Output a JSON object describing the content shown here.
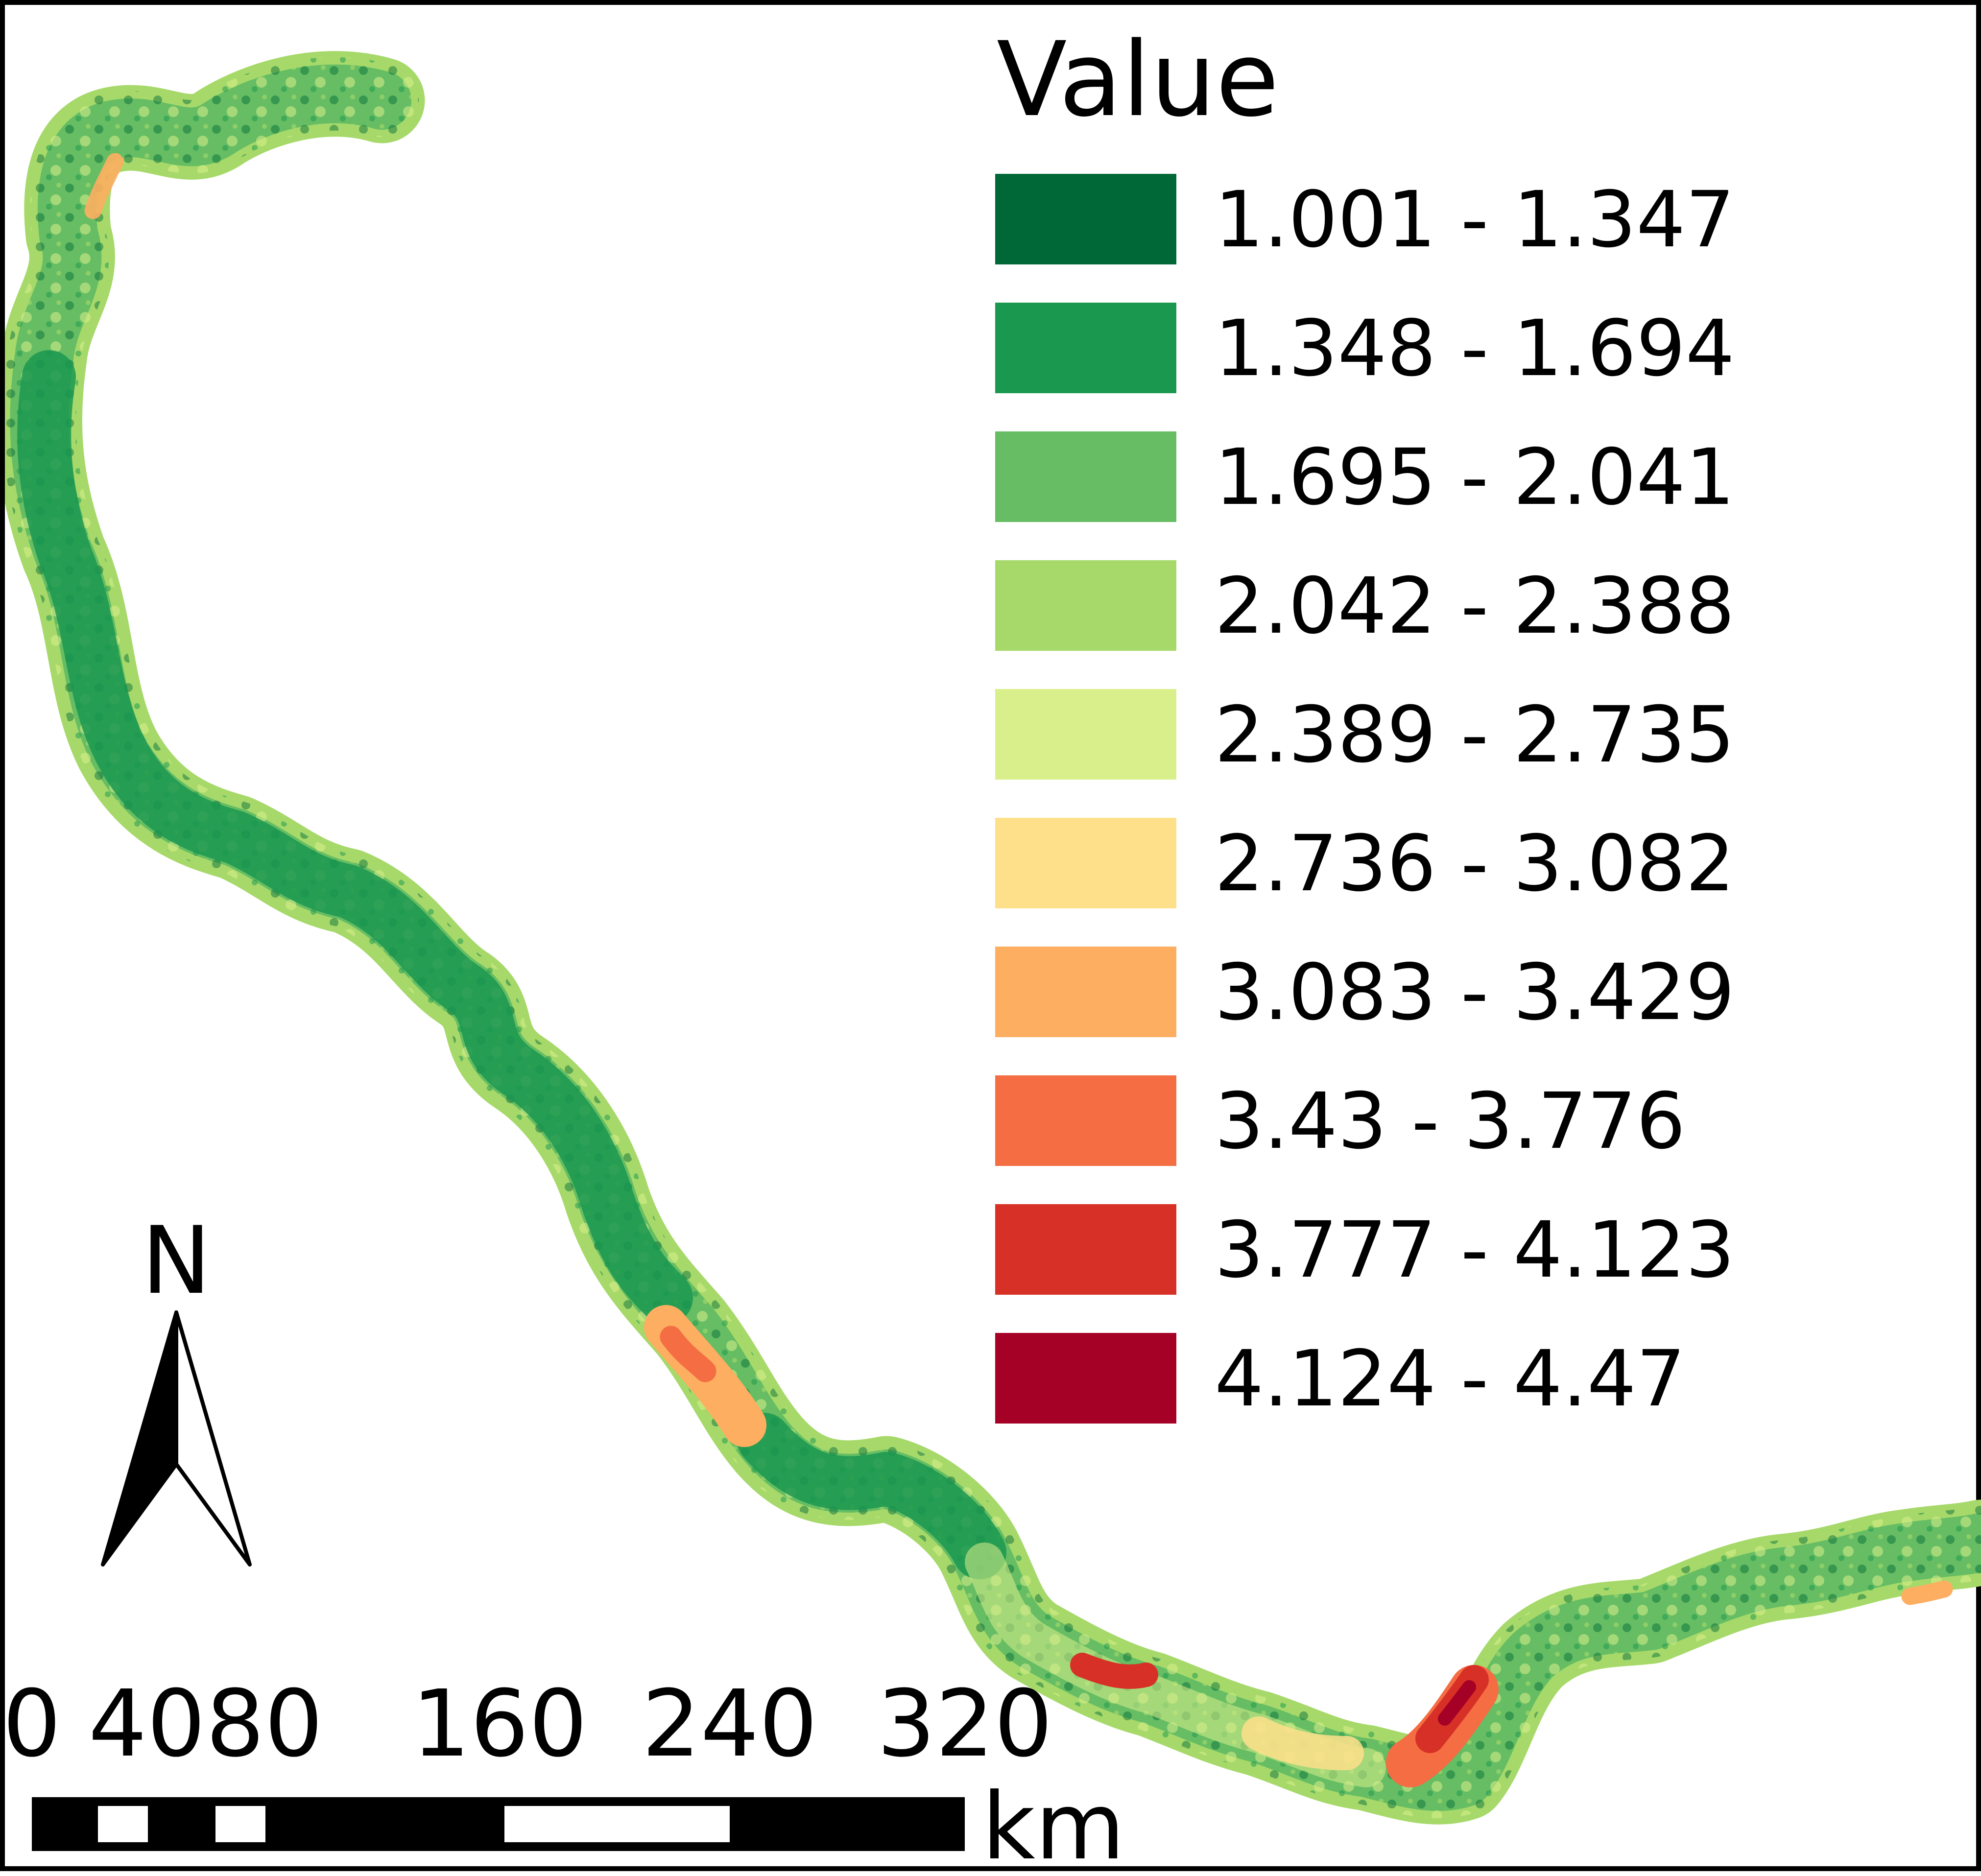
{
  "legend": {
    "title": "Value",
    "classes": [
      {
        "label": "1.001 - 1.347",
        "color": "#006837"
      },
      {
        "label": "1.348 - 1.694",
        "color": "#1a9850"
      },
      {
        "label": "1.695 - 2.041",
        "color": "#66bd63"
      },
      {
        "label": "2.042 - 2.388",
        "color": "#a6d96a"
      },
      {
        "label": "2.389 - 2.735",
        "color": "#d9ef8b"
      },
      {
        "label": "2.736 - 3.082",
        "color": "#fee08b"
      },
      {
        "label": "3.083 - 3.429",
        "color": "#fdae61"
      },
      {
        "label": "3.43 - 3.776",
        "color": "#f46d43"
      },
      {
        "label": "3.777 - 4.123",
        "color": "#d73027"
      },
      {
        "label": "4.124 - 4.47",
        "color": "#a50026"
      }
    ]
  },
  "north_arrow": {
    "label": "N"
  },
  "scale_bar": {
    "ticks": [
      "0",
      "40",
      "80",
      "160",
      "240",
      "320"
    ],
    "unit": "km"
  }
}
